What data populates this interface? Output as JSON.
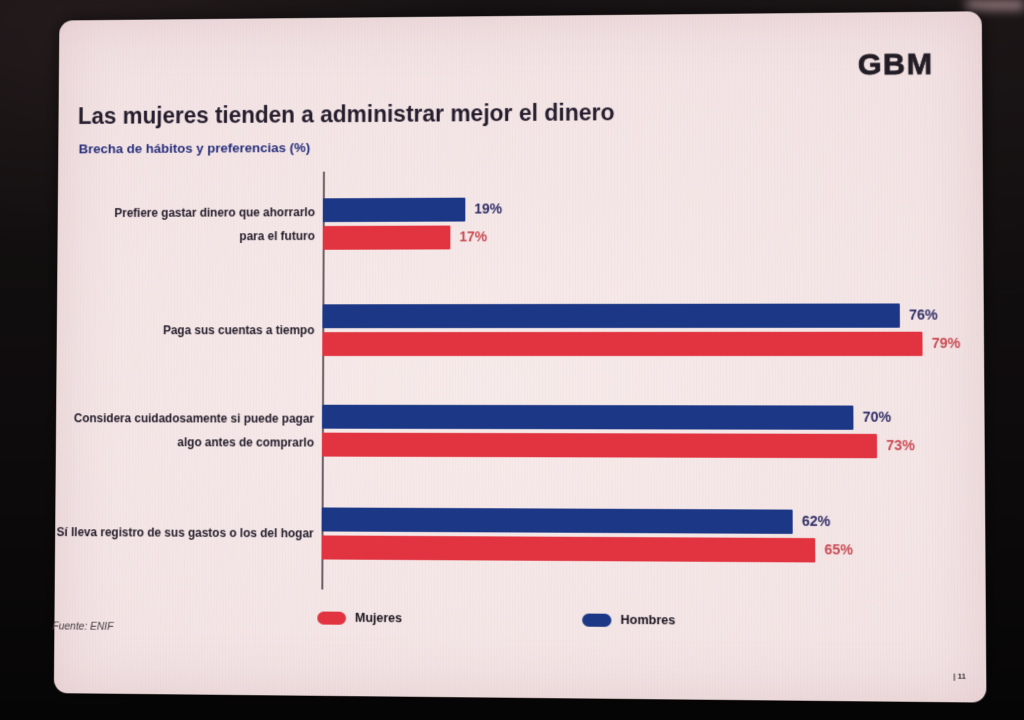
{
  "brand": {
    "logo": "GBM"
  },
  "slide": {
    "title": "Las mujeres tienden a administrar mejor el dinero",
    "subtitle": "Brecha de hábitos y preferencias (%)",
    "source": "Fuente: ENIF",
    "page_number": "| 11"
  },
  "legend": {
    "items": [
      {
        "label": "Mujeres",
        "color": "#e13440"
      },
      {
        "label": "Hombres",
        "color": "#1b3786"
      }
    ]
  },
  "chart_data": {
    "type": "bar",
    "orientation": "horizontal",
    "title": "Brecha de hábitos y preferencias (%)",
    "categories": [
      "Prefiere gastar dinero que ahorrarlo\npara el futuro",
      "Paga sus cuentas a tiempo",
      "Considera cuidadosamente si puede pagar\nalgo antes de comprarlo",
      "Sí lleva registro de sus gastos o los del hogar"
    ],
    "series": [
      {
        "name": "Hombres",
        "color": "#1b3786",
        "label_color": "#302f68",
        "values": [
          19,
          76,
          70,
          62
        ]
      },
      {
        "name": "Mujeres",
        "color": "#e13440",
        "label_color": "#c94b54",
        "values": [
          17,
          79,
          73,
          65
        ]
      }
    ],
    "value_suffix": "%",
    "xlim": [
      0,
      100
    ],
    "axis_line": true,
    "legend_position": "bottom"
  }
}
